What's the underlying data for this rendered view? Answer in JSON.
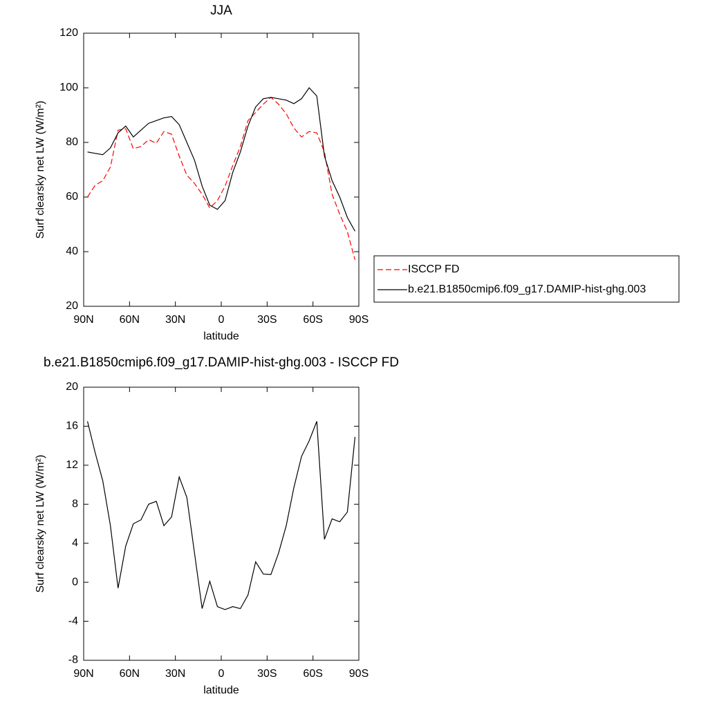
{
  "chart_data": [
    {
      "type": "line",
      "title": "JJA",
      "x_label": "latitude",
      "y_label": "Surf clearsky net LW (W/m²)",
      "x": [
        87.5,
        82.5,
        77.5,
        72.5,
        67.5,
        62.5,
        57.5,
        52.5,
        47.5,
        42.5,
        37.5,
        32.5,
        27.5,
        22.5,
        17.5,
        12.5,
        7.5,
        2.5,
        -2.5,
        -7.5,
        -12.5,
        -17.5,
        -22.5,
        -27.5,
        -32.5,
        -37.5,
        -42.5,
        -47.5,
        -52.5,
        -57.5,
        -62.5,
        -67.5,
        -72.5,
        -77.5,
        -82.5,
        -87.5
      ],
      "series": [
        {
          "name": "ISCCP FD",
          "color": "#ff0000",
          "linestyle": "dashed",
          "values": [
            60,
            64.3,
            66,
            71,
            84.5,
            85,
            77.7,
            78.5,
            81,
            79.7,
            84,
            83,
            75,
            68,
            65,
            61,
            56,
            58.7,
            64,
            71.5,
            78.5,
            88,
            91,
            94,
            96.5,
            94,
            90.5,
            85.3,
            82,
            84,
            83.5,
            76.5,
            61,
            53.7,
            47.3,
            37
          ]
        },
        {
          "name": "b.e21.B1850cmip6.f09_g17.DAMIP-hist-ghg.003",
          "color": "#000000",
          "linestyle": "solid",
          "values": [
            76.5,
            76,
            75.5,
            78,
            83.5,
            86,
            82,
            84.5,
            87,
            88,
            89,
            89.5,
            86.5,
            80,
            73.5,
            64,
            57,
            55.5,
            58.7,
            69,
            76.5,
            86,
            93,
            96,
            96.5,
            96,
            95.5,
            94.2,
            96,
            100,
            97,
            75,
            66,
            60,
            52.5,
            47.5
          ]
        }
      ],
      "xlim": [
        90,
        -90
      ],
      "ylim": [
        20,
        120
      ],
      "xticks": [
        {
          "value": 90,
          "label": "90N"
        },
        {
          "value": 60,
          "label": "60N"
        },
        {
          "value": 30,
          "label": "30N"
        },
        0,
        {
          "value": -30,
          "label": "30S"
        },
        {
          "value": -60,
          "label": "60S"
        },
        {
          "value": -90,
          "label": "90S"
        }
      ],
      "yticks": [
        20,
        40,
        60,
        80,
        100,
        120
      ],
      "legend": "right"
    },
    {
      "type": "line",
      "title": "b.e21.B1850cmip6.f09_g17.DAMIP-hist-ghg.003 - ISCCP FD",
      "x_label": "latitude",
      "y_label": "Surf clearsky net LW (W/m²)",
      "x": [
        87.5,
        82.5,
        77.5,
        72.5,
        67.5,
        62.5,
        57.5,
        52.5,
        47.5,
        42.5,
        37.5,
        32.5,
        27.5,
        22.5,
        17.5,
        12.5,
        7.5,
        2.5,
        -2.5,
        -7.5,
        -12.5,
        -17.5,
        -22.5,
        -27.5,
        -32.5,
        -37.5,
        -42.5,
        -47.5,
        -52.5,
        -57.5,
        -62.5,
        -67.5,
        -72.5,
        -77.5,
        -82.5,
        -87.5
      ],
      "series": [
        {
          "color": "#000000",
          "linestyle": "solid",
          "values": [
            16.5,
            13.3,
            10.4,
            5.8,
            -0.6,
            3.7,
            6.0,
            6.4,
            8,
            8.3,
            5.8,
            6.7,
            10.8,
            8.7,
            3,
            -2.7,
            0.1,
            -2.5,
            -2.8,
            -2.5,
            -2.7,
            -1.3,
            2.1,
            0.85,
            0.8,
            3,
            5.8,
            9.7,
            12.9,
            14.5,
            16.5,
            4.4,
            6.5,
            6.2,
            7.2,
            14.9
          ]
        }
      ],
      "xlim": [
        90,
        -90
      ],
      "ylim": [
        -8,
        20
      ],
      "xticks": [
        {
          "value": 90,
          "label": "90N"
        },
        {
          "value": 60,
          "label": "60N"
        },
        {
          "value": 30,
          "label": "30N"
        },
        0,
        {
          "value": -30,
          "label": "30S"
        },
        {
          "value": -60,
          "label": "60S"
        },
        {
          "value": -90,
          "label": "90S"
        }
      ],
      "yticks": [
        -8,
        -4,
        0,
        4,
        8,
        12,
        16,
        20
      ]
    }
  ]
}
